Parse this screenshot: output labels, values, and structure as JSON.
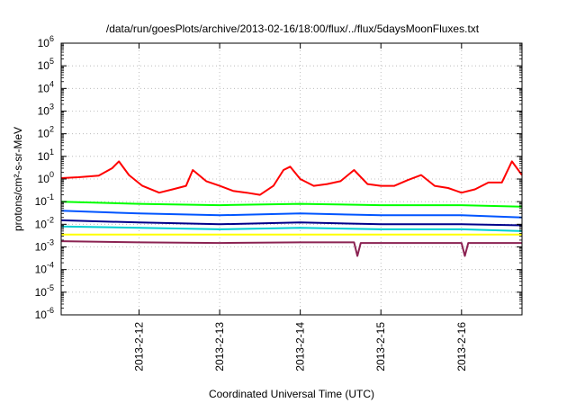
{
  "chart_data": {
    "type": "line",
    "title": "/data/run/goesPlots/archive/2013-02-16/18:00/flux/../flux/5daysMoonFluxes.txt",
    "xlabel": "Coordinated Universal Time (UTC)",
    "ylabel": "protons/cm²-s-sr-MeV",
    "yscale": "log",
    "ylim": [
      1e-06,
      1000000.0
    ],
    "xlim": [
      "2013-02-11T00:50",
      "2013-02-16T18:00"
    ],
    "grid": true,
    "y_ticks": [
      {
        "v": 1e-06,
        "exp": "-6"
      },
      {
        "v": 1e-05,
        "exp": "-5"
      },
      {
        "v": 0.0001,
        "exp": "-4"
      },
      {
        "v": 0.001,
        "exp": "-3"
      },
      {
        "v": 0.01,
        "exp": "-2"
      },
      {
        "v": 0.1,
        "exp": "-1"
      },
      {
        "v": 1,
        "exp": "0"
      },
      {
        "v": 10,
        "exp": "1"
      },
      {
        "v": 100,
        "exp": "2"
      },
      {
        "v": 1000.0,
        "exp": "3"
      },
      {
        "v": 10000.0,
        "exp": "4"
      },
      {
        "v": 100000.0,
        "exp": "5"
      },
      {
        "v": 1000000.0,
        "exp": "6"
      }
    ],
    "x_ticks": [
      {
        "x": "2013-02-12T00:00",
        "label": "2013-2-12"
      },
      {
        "x": "2013-02-13T00:00",
        "label": "2013-2-13"
      },
      {
        "x": "2013-02-14T00:00",
        "label": "2013-2-14"
      },
      {
        "x": "2013-02-15T00:00",
        "label": "2013-2-15"
      },
      {
        "x": "2013-02-16T00:00",
        "label": "2013-2-16"
      }
    ],
    "series": [
      {
        "color": "#ff0000",
        "x": [
          "2013-02-11T00:50",
          "2013-02-11T06:00",
          "2013-02-11T12:00",
          "2013-02-11T16:00",
          "2013-02-11T18:00",
          "2013-02-11T21:00",
          "2013-02-12T01:00",
          "2013-02-12T06:00",
          "2013-02-12T10:00",
          "2013-02-12T14:00",
          "2013-02-12T16:00",
          "2013-02-12T20:00",
          "2013-02-13T00:00",
          "2013-02-13T04:00",
          "2013-02-13T08:00",
          "2013-02-13T12:00",
          "2013-02-13T16:00",
          "2013-02-13T19:00",
          "2013-02-13T21:00",
          "2013-02-14T00:00",
          "2013-02-14T04:00",
          "2013-02-14T08:00",
          "2013-02-14T12:00",
          "2013-02-14T16:00",
          "2013-02-14T20:00",
          "2013-02-15T00:00",
          "2013-02-15T04:00",
          "2013-02-15T08:00",
          "2013-02-15T12:00",
          "2013-02-15T16:00",
          "2013-02-15T20:00",
          "2013-02-16T00:00",
          "2013-02-16T04:00",
          "2013-02-16T08:00",
          "2013-02-16T12:00",
          "2013-02-16T15:00",
          "2013-02-16T18:00"
        ],
        "y": [
          1.1,
          1.2,
          1.4,
          3.0,
          6.0,
          1.5,
          0.5,
          0.25,
          0.35,
          0.5,
          2.5,
          0.8,
          0.5,
          0.3,
          0.25,
          0.2,
          0.5,
          2.5,
          3.5,
          1.0,
          0.5,
          0.6,
          0.8,
          2.5,
          0.6,
          0.5,
          0.5,
          0.9,
          1.5,
          0.5,
          0.4,
          0.25,
          0.35,
          0.7,
          0.7,
          6.0,
          1.5
        ]
      },
      {
        "color": "#00ff00",
        "x": [
          "2013-02-11T00:50",
          "2013-02-12T00:00",
          "2013-02-13T00:00",
          "2013-02-14T00:00",
          "2013-02-15T00:00",
          "2013-02-16T00:00",
          "2013-02-16T18:00"
        ],
        "y": [
          0.1,
          0.08,
          0.07,
          0.08,
          0.07,
          0.07,
          0.06
        ]
      },
      {
        "color": "#0055ff",
        "x": [
          "2013-02-11T00:50",
          "2013-02-12T00:00",
          "2013-02-13T00:00",
          "2013-02-14T00:00",
          "2013-02-15T00:00",
          "2013-02-16T00:00",
          "2013-02-16T18:00"
        ],
        "y": [
          0.04,
          0.03,
          0.025,
          0.03,
          0.025,
          0.025,
          0.02
        ]
      },
      {
        "color": "#00008b",
        "x": [
          "2013-02-11T00:50",
          "2013-02-12T00:00",
          "2013-02-13T00:00",
          "2013-02-14T00:00",
          "2013-02-15T00:00",
          "2013-02-16T00:00",
          "2013-02-16T18:00"
        ],
        "y": [
          0.015,
          0.012,
          0.01,
          0.012,
          0.01,
          0.01,
          0.009
        ]
      },
      {
        "color": "#00ced1",
        "x": [
          "2013-02-11T00:50",
          "2013-02-12T00:00",
          "2013-02-13T00:00",
          "2013-02-14T00:00",
          "2013-02-15T00:00",
          "2013-02-16T00:00",
          "2013-02-16T18:00"
        ],
        "y": [
          0.008,
          0.007,
          0.006,
          0.007,
          0.006,
          0.006,
          0.005
        ]
      },
      {
        "color": "#ffff00",
        "x": [
          "2013-02-11T00:50",
          "2013-02-16T18:00"
        ],
        "y": [
          0.0035,
          0.0035
        ]
      },
      {
        "color": "#8b2252",
        "x": [
          "2013-02-11T00:50",
          "2013-02-12T00:00",
          "2013-02-13T00:00",
          "2013-02-14T00:00",
          "2013-02-14T16:00",
          "2013-02-14T17:00",
          "2013-02-14T18:00",
          "2013-02-15T00:00",
          "2013-02-16T00:00",
          "2013-02-16T01:00",
          "2013-02-16T02:00",
          "2013-02-16T18:00"
        ],
        "y": [
          0.0018,
          0.0016,
          0.0015,
          0.0016,
          0.0016,
          0.0004,
          0.0015,
          0.0015,
          0.0015,
          0.0004,
          0.0015,
          0.0015
        ]
      }
    ]
  }
}
